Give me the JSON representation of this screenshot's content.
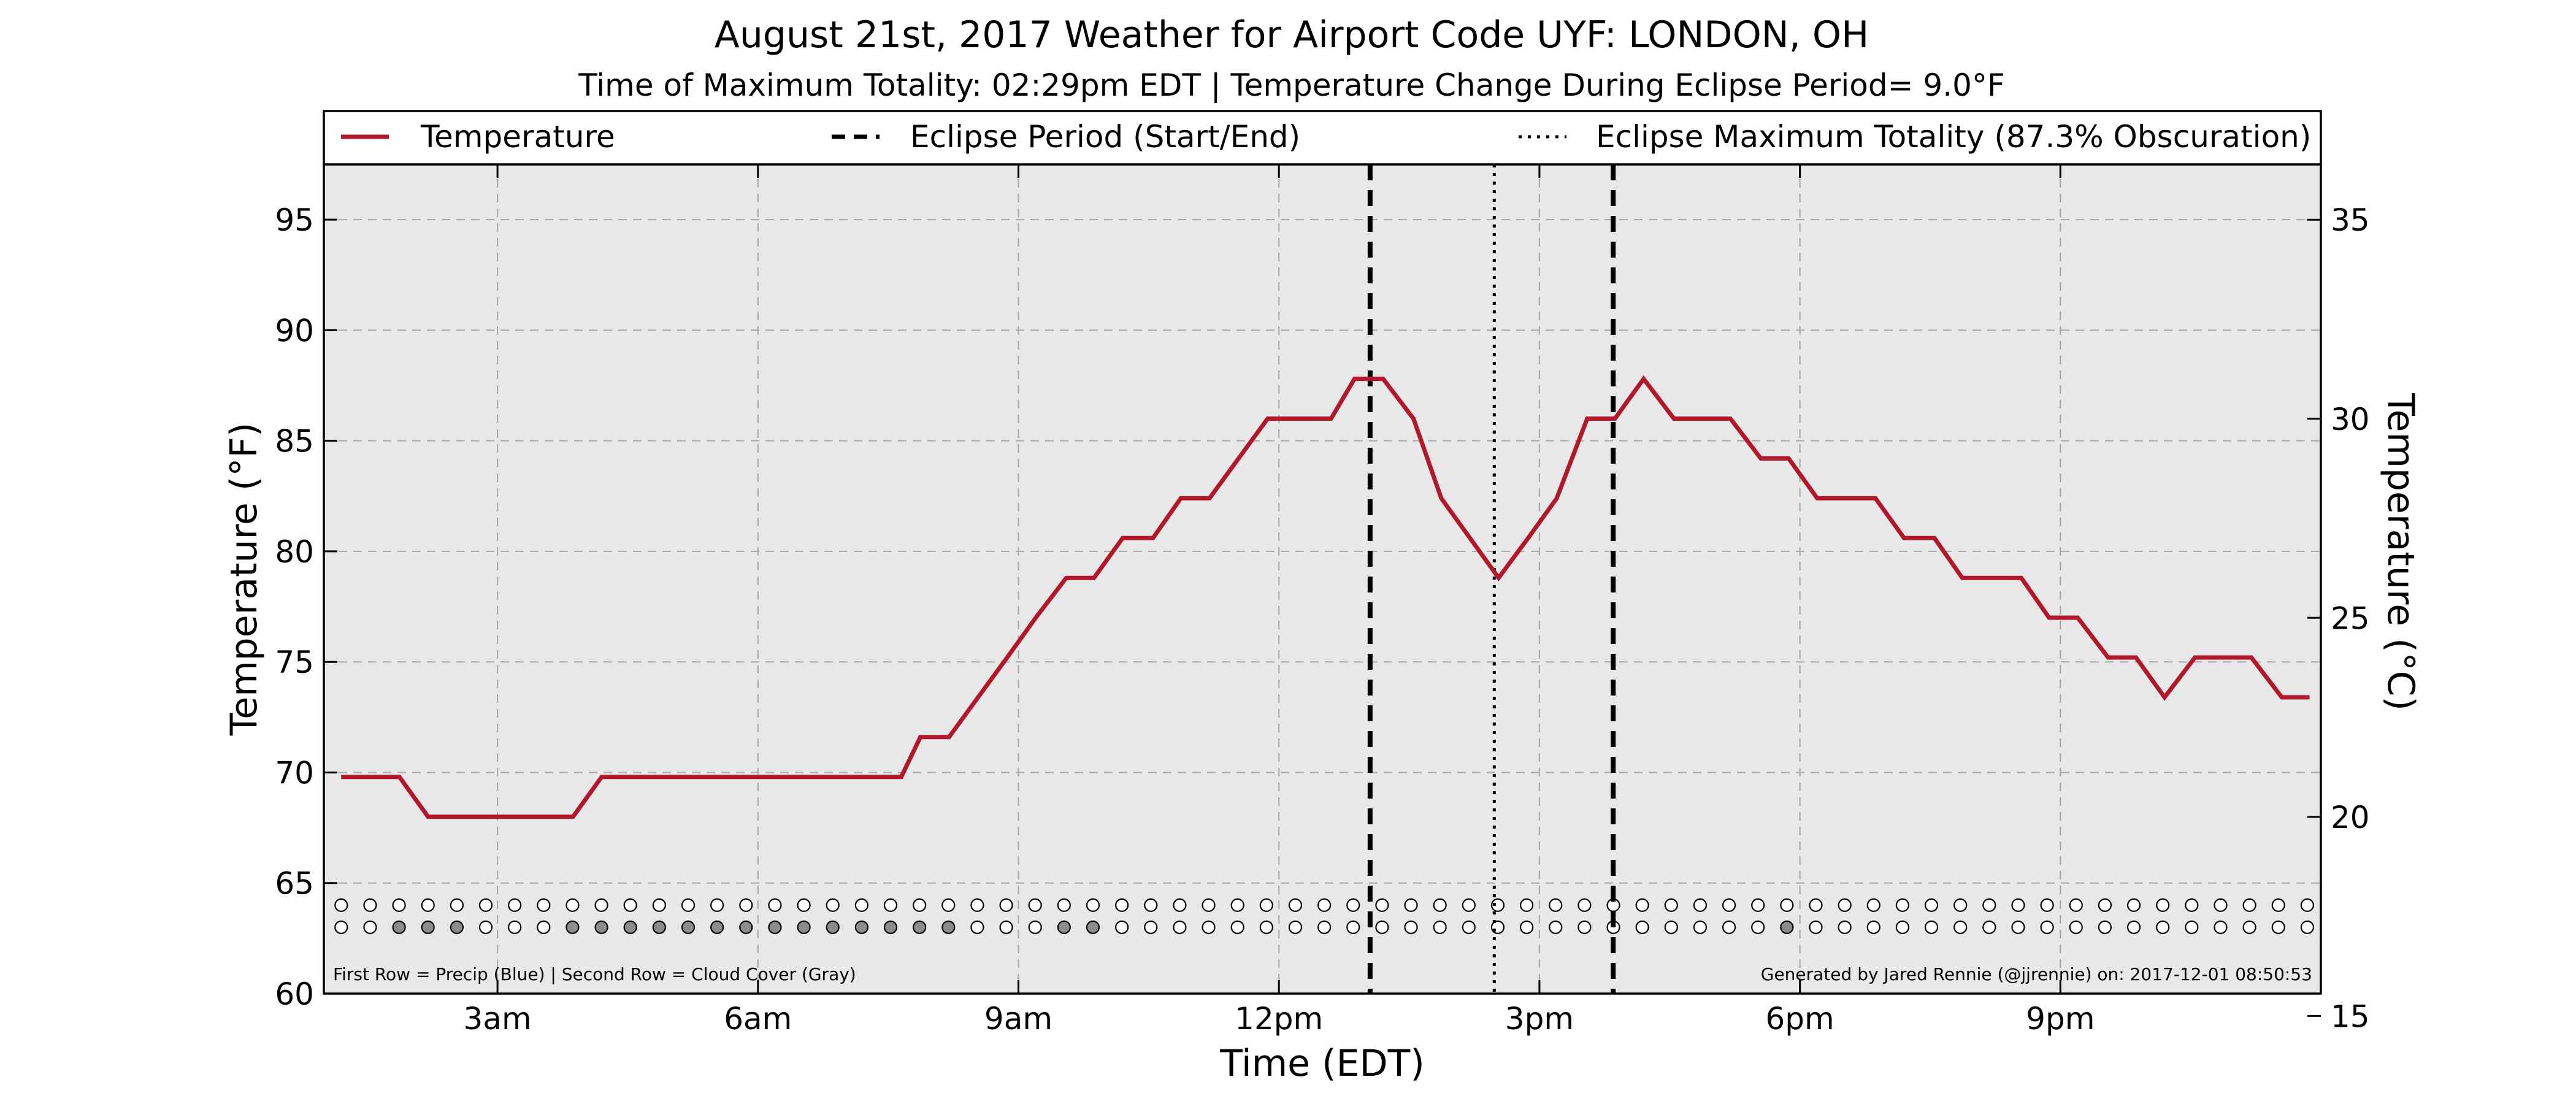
{
  "chart_data": {
    "type": "line",
    "title": "August 21st, 2017 Weather for Airport Code UYF: LONDON, OH",
    "subtitle": "Time of Maximum Totality: 02:29pm EDT | Temperature Change During Eclipse Period= 9.0°F",
    "xlabel": "Time (EDT)",
    "ylabel": "Temperature (°F)",
    "ylabel_right": "Temperature (°C)",
    "xlim": [
      1.0,
      24.0
    ],
    "ylim": [
      60,
      97.5
    ],
    "ylim_right": [
      15.56,
      36.39
    ],
    "grid": true,
    "legend_placement": "top",
    "x_ticks": [
      {
        "x": 3,
        "label": "3am"
      },
      {
        "x": 6,
        "label": "6am"
      },
      {
        "x": 9,
        "label": "9am"
      },
      {
        "x": 12,
        "label": "12pm"
      },
      {
        "x": 15,
        "label": "3pm"
      },
      {
        "x": 18,
        "label": "6pm"
      },
      {
        "x": 21,
        "label": "9pm"
      }
    ],
    "y_ticks": [
      60,
      65,
      70,
      75,
      80,
      85,
      90,
      95
    ],
    "y_ticks_right": [
      15,
      20,
      25,
      30,
      35
    ],
    "legend": [
      {
        "label": "Temperature",
        "style": "solid",
        "color": "#b2182b"
      },
      {
        "label": "Eclipse Period (Start/End)",
        "style": "dashed",
        "color": "#000000"
      },
      {
        "label": "Eclipse Maximum Totality (87.3% Obscuration)",
        "style": "dotted",
        "color": "#000000"
      }
    ],
    "eclipse_start": 13.05,
    "eclipse_end": 15.85,
    "max_totality": 14.48,
    "series": [
      {
        "name": "Temperature",
        "color": "#b2182b",
        "points": [
          [
            1.2,
            69.8
          ],
          [
            1.87,
            69.8
          ],
          [
            2.2,
            68.0
          ],
          [
            2.87,
            68.0
          ],
          [
            3.2,
            68.0
          ],
          [
            3.87,
            68.0
          ],
          [
            4.2,
            69.8
          ],
          [
            4.87,
            69.8
          ],
          [
            5.2,
            69.8
          ],
          [
            5.87,
            69.8
          ],
          [
            6.2,
            69.8
          ],
          [
            6.87,
            69.8
          ],
          [
            7.2,
            69.8
          ],
          [
            7.65,
            69.8
          ],
          [
            7.87,
            71.6
          ],
          [
            8.2,
            71.6
          ],
          [
            8.87,
            75.2
          ],
          [
            9.2,
            77.0
          ],
          [
            9.55,
            78.8
          ],
          [
            9.87,
            78.8
          ],
          [
            10.2,
            80.6
          ],
          [
            10.55,
            80.6
          ],
          [
            10.87,
            82.4
          ],
          [
            11.2,
            82.4
          ],
          [
            11.87,
            86.0
          ],
          [
            12.2,
            86.0
          ],
          [
            12.6,
            86.0
          ],
          [
            12.87,
            87.8
          ],
          [
            13.2,
            87.8
          ],
          [
            13.55,
            86.0
          ],
          [
            13.87,
            82.4
          ],
          [
            14.2,
            80.6
          ],
          [
            14.53,
            78.8
          ],
          [
            14.87,
            80.6
          ],
          [
            15.2,
            82.4
          ],
          [
            15.55,
            86.0
          ],
          [
            15.87,
            86.0
          ],
          [
            16.2,
            87.8
          ],
          [
            16.55,
            86.0
          ],
          [
            16.87,
            86.0
          ],
          [
            17.2,
            86.0
          ],
          [
            17.55,
            84.2
          ],
          [
            17.87,
            84.2
          ],
          [
            18.2,
            82.4
          ],
          [
            18.55,
            82.4
          ],
          [
            18.87,
            82.4
          ],
          [
            19.2,
            80.6
          ],
          [
            19.55,
            80.6
          ],
          [
            19.87,
            78.8
          ],
          [
            20.2,
            78.8
          ],
          [
            20.55,
            78.8
          ],
          [
            20.87,
            77.0
          ],
          [
            21.2,
            77.0
          ],
          [
            21.55,
            75.2
          ],
          [
            21.87,
            75.2
          ],
          [
            22.2,
            73.4
          ],
          [
            22.55,
            75.2
          ],
          [
            22.87,
            75.2
          ],
          [
            23.2,
            75.2
          ],
          [
            23.55,
            73.4
          ],
          [
            23.87,
            73.4
          ]
        ]
      }
    ],
    "marker_rows": {
      "y_row1": 64.0,
      "y_row2": 63.0,
      "x_start": 1.2,
      "x_step": 0.333,
      "count": 69,
      "precip_filled": [],
      "cloud_filled": [
        2,
        3,
        4,
        8,
        9,
        10,
        11,
        12,
        13,
        14,
        15,
        16,
        17,
        18,
        19,
        20,
        21,
        25,
        26,
        50
      ]
    },
    "footer_left": "First Row = Precip (Blue) | Second Row = Cloud Cover (Gray)",
    "footer_right": "Generated by Jared Rennie (@jjrennie) on: 2017-12-01 08:50:53",
    "colors": {
      "temperature": "#b2182b",
      "plot_background": "#e8e8e8",
      "precip": "#4a78c8",
      "cloud": "#8c8c8c",
      "empty_marker": "#ffffff"
    }
  }
}
